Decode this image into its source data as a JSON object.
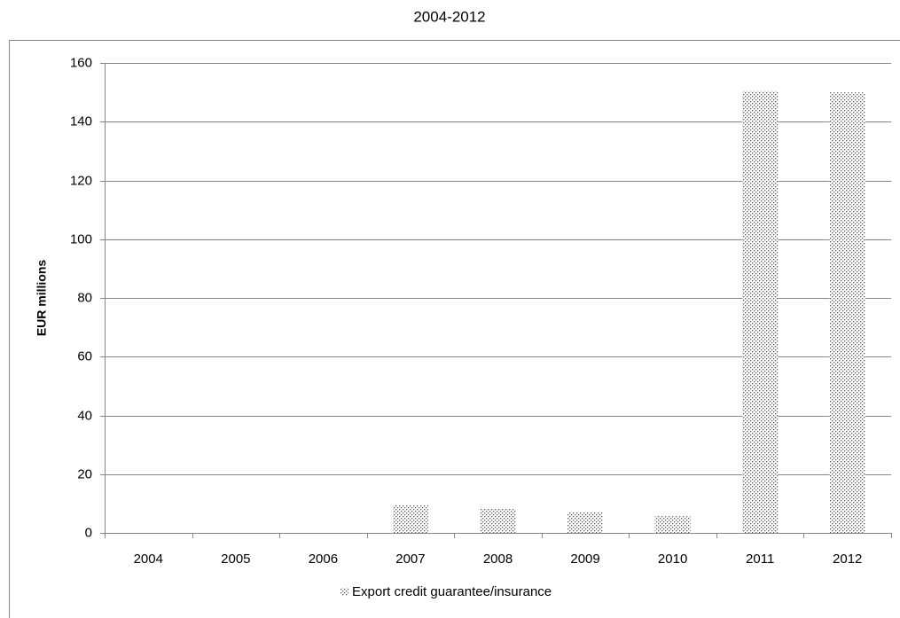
{
  "chart_data": {
    "type": "bar",
    "title": "2004-2012",
    "y_label": "EUR millions",
    "categories": [
      "2004",
      "2005",
      "2006",
      "2007",
      "2008",
      "2009",
      "2010",
      "2011",
      "2012"
    ],
    "series": [
      {
        "name": "Export credit guarantee/insurance",
        "color": "#555555",
        "values": [
          0,
          0,
          0,
          9.4,
          8.2,
          7.2,
          5.7,
          150.4,
          150
        ]
      }
    ],
    "ylim": [
      0,
      160
    ],
    "yticks": [
      0,
      20,
      40,
      60,
      80,
      100,
      120,
      140,
      160
    ],
    "grid": true,
    "legend": "bottom"
  }
}
